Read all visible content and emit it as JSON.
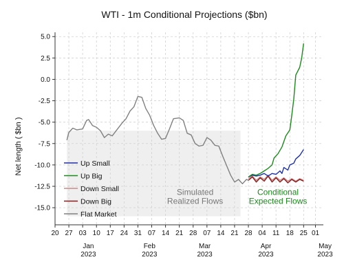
{
  "chart_data": {
    "type": "line",
    "title": "WTI - 1m Conditional Projections ($bn)",
    "ylabel": "Net length ( $bn )",
    "ylim": [
      -17,
      5.5
    ],
    "yticks": [
      5.0,
      2.5,
      0.0,
      -2.5,
      -5.0,
      -7.5,
      -10.0,
      -12.5,
      -15.0
    ],
    "ytick_labels": [
      "5.0",
      "2.5",
      "0.0",
      "-2.5",
      "-5.0",
      "-7.5",
      "-10.0",
      "-12.5",
      "-15.0"
    ],
    "xlim": [
      "2022-12-20",
      "2023-05-05"
    ],
    "xticks": [
      "2022-12-20",
      "2022-12-27",
      "2023-01-03",
      "2023-01-10",
      "2023-01-17",
      "2023-01-24",
      "2023-01-31",
      "2023-02-07",
      "2023-02-14",
      "2023-02-21",
      "2023-02-28",
      "2023-03-07",
      "2023-03-14",
      "2023-03-21",
      "2023-03-28",
      "2023-04-04",
      "2023-04-11",
      "2023-04-18",
      "2023-04-25",
      "2023-05-01"
    ],
    "xtick_labels": [
      "20",
      "27",
      "03",
      "10",
      "17",
      "24",
      "31",
      "07",
      "14",
      "21",
      "28",
      "07",
      "14",
      "21",
      "28",
      "04",
      "11",
      "18",
      "25",
      "01"
    ],
    "month_labels": [
      {
        "date": "2023-01-01",
        "label": "Jan\n2023"
      },
      {
        "date": "2023-02-01",
        "label": "Feb\n2023"
      },
      {
        "date": "2023-03-01",
        "label": "Mar\n2023"
      },
      {
        "date": "2023-04-01",
        "label": "Apr\n2023"
      },
      {
        "date": "2023-05-01",
        "label": "May\n2023"
      }
    ],
    "grid": true,
    "legend_position": "lower-left",
    "shaded_region": {
      "x": [
        "2022-12-26",
        "2023-03-24"
      ],
      "y": [
        -16,
        -6
      ],
      "color": "#efefef"
    },
    "annotations": [
      {
        "text": "Simulated\nRealized Flows",
        "x": "2023-03-01",
        "y": -13.5,
        "color": "#777777"
      },
      {
        "text": "Conditional\nExpected Flows",
        "x": "2023-04-12",
        "y": -13.5,
        "color": "#1a8a1a"
      }
    ],
    "series": [
      {
        "name": "Up Small",
        "color": "#1f2fa8",
        "points": [
          [
            "2023-03-28",
            -11.4
          ],
          [
            "2023-03-30",
            -11.2
          ],
          [
            "2023-04-01",
            -11.3
          ],
          [
            "2023-04-03",
            -11.2
          ],
          [
            "2023-04-05",
            -11.0
          ],
          [
            "2023-04-07",
            -11.3
          ],
          [
            "2023-04-09",
            -11.0
          ],
          [
            "2023-04-11",
            -11.1
          ],
          [
            "2023-04-13",
            -10.7
          ],
          [
            "2023-04-14",
            -11.0
          ],
          [
            "2023-04-15",
            -10.3
          ],
          [
            "2023-04-17",
            -10.6
          ],
          [
            "2023-04-18",
            -10.0
          ],
          [
            "2023-04-20",
            -9.8
          ],
          [
            "2023-04-21",
            -9.3
          ],
          [
            "2023-04-23",
            -8.9
          ],
          [
            "2023-04-25",
            -8.2
          ]
        ]
      },
      {
        "name": "Up Big",
        "color": "#1a8a1a",
        "points": [
          [
            "2023-03-28",
            -11.4
          ],
          [
            "2023-03-30",
            -11.1
          ],
          [
            "2023-04-01",
            -11.2
          ],
          [
            "2023-04-03",
            -11.0
          ],
          [
            "2023-04-05",
            -10.7
          ],
          [
            "2023-04-07",
            -10.4
          ],
          [
            "2023-04-09",
            -10.0
          ],
          [
            "2023-04-10",
            -9.2
          ],
          [
            "2023-04-12",
            -8.7
          ],
          [
            "2023-04-14",
            -7.9
          ],
          [
            "2023-04-16",
            -6.6
          ],
          [
            "2023-04-18",
            -5.9
          ],
          [
            "2023-04-19",
            -4.2
          ],
          [
            "2023-04-20",
            -2.3
          ],
          [
            "2023-04-21",
            0.5
          ],
          [
            "2023-04-23",
            1.4
          ],
          [
            "2023-04-24",
            2.5
          ],
          [
            "2023-04-25",
            4.2
          ]
        ]
      },
      {
        "name": "Down Small",
        "color": "#c98a8a",
        "points": [
          [
            "2023-03-28",
            -11.6
          ],
          [
            "2023-03-30",
            -11.3
          ],
          [
            "2023-04-01",
            -11.8
          ],
          [
            "2023-04-03",
            -11.4
          ],
          [
            "2023-04-05",
            -11.7
          ],
          [
            "2023-04-07",
            -11.2
          ],
          [
            "2023-04-09",
            -11.8
          ],
          [
            "2023-04-11",
            -11.4
          ],
          [
            "2023-04-13",
            -11.8
          ],
          [
            "2023-04-15",
            -11.5
          ],
          [
            "2023-04-17",
            -11.9
          ],
          [
            "2023-04-19",
            -11.6
          ],
          [
            "2023-04-21",
            -11.9
          ],
          [
            "2023-04-23",
            -11.6
          ],
          [
            "2023-04-25",
            -11.8
          ]
        ]
      },
      {
        "name": "Down Big",
        "color": "#8b1a1a",
        "points": [
          [
            "2023-03-28",
            -11.8
          ],
          [
            "2023-03-30",
            -11.4
          ],
          [
            "2023-04-01",
            -12.0
          ],
          [
            "2023-04-03",
            -11.5
          ],
          [
            "2023-04-05",
            -11.9
          ],
          [
            "2023-04-07",
            -11.3
          ],
          [
            "2023-04-09",
            -12.0
          ],
          [
            "2023-04-11",
            -11.5
          ],
          [
            "2023-04-13",
            -12.0
          ],
          [
            "2023-04-15",
            -11.6
          ],
          [
            "2023-04-17",
            -12.1
          ],
          [
            "2023-04-19",
            -11.7
          ],
          [
            "2023-04-21",
            -12.0
          ],
          [
            "2023-04-23",
            -11.7
          ],
          [
            "2023-04-25",
            -11.9
          ]
        ]
      },
      {
        "name": "Flat Market",
        "color": "#808080",
        "points": [
          [
            "2022-12-26",
            -7.1
          ],
          [
            "2022-12-27",
            -6.2
          ],
          [
            "2022-12-29",
            -5.7
          ],
          [
            "2022-12-31",
            -5.9
          ],
          [
            "2023-01-03",
            -5.8
          ],
          [
            "2023-01-05",
            -4.8
          ],
          [
            "2023-01-06",
            -4.7
          ],
          [
            "2023-01-08",
            -5.4
          ],
          [
            "2023-01-10",
            -5.6
          ],
          [
            "2023-01-12",
            -6.0
          ],
          [
            "2023-01-14",
            -6.8
          ],
          [
            "2023-01-16",
            -6.4
          ],
          [
            "2023-01-18",
            -6.6
          ],
          [
            "2023-01-20",
            -6.0
          ],
          [
            "2023-01-23",
            -5.1
          ],
          [
            "2023-01-25",
            -4.6
          ],
          [
            "2023-01-27",
            -3.7
          ],
          [
            "2023-01-29",
            -3.2
          ],
          [
            "2023-01-31",
            -2.0
          ],
          [
            "2023-02-02",
            -2.1
          ],
          [
            "2023-02-04",
            -3.4
          ],
          [
            "2023-02-06",
            -4.2
          ],
          [
            "2023-02-08",
            -5.4
          ],
          [
            "2023-02-10",
            -6.3
          ],
          [
            "2023-02-12",
            -7.0
          ],
          [
            "2023-02-14",
            -6.9
          ],
          [
            "2023-02-16",
            -5.8
          ],
          [
            "2023-02-18",
            -4.6
          ],
          [
            "2023-02-21",
            -4.5
          ],
          [
            "2023-02-23",
            -4.8
          ],
          [
            "2023-02-25",
            -6.3
          ],
          [
            "2023-02-27",
            -6.5
          ],
          [
            "2023-03-01",
            -7.5
          ],
          [
            "2023-03-03",
            -7.8
          ],
          [
            "2023-03-05",
            -7.7
          ],
          [
            "2023-03-07",
            -6.8
          ],
          [
            "2023-03-09",
            -7.1
          ],
          [
            "2023-03-11",
            -7.7
          ],
          [
            "2023-03-13",
            -7.8
          ],
          [
            "2023-03-15",
            -9.0
          ],
          [
            "2023-03-17",
            -10.1
          ],
          [
            "2023-03-19",
            -11.2
          ],
          [
            "2023-03-21",
            -12.0
          ],
          [
            "2023-03-23",
            -11.7
          ],
          [
            "2023-03-25",
            -12.2
          ],
          [
            "2023-03-27",
            -11.7
          ],
          [
            "2023-03-28",
            -11.8
          ]
        ]
      }
    ]
  }
}
